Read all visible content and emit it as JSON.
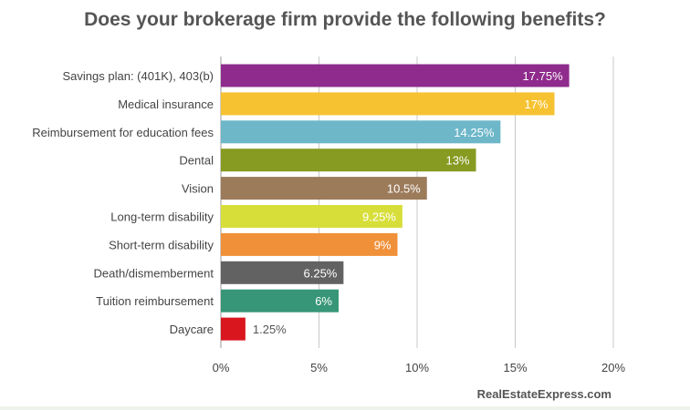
{
  "chart_data": {
    "type": "bar",
    "orientation": "horizontal",
    "title": "Does your brokerage firm provide the following benefits?",
    "categories": [
      "Savings plan: (401K), 403(b)",
      "Medical insurance",
      "Reimbursement for education fees",
      "Dental",
      "Vision",
      "Long-term disability",
      "Short-term disability",
      "Death/dismemberment",
      "Tuition reimbursement",
      "Daycare"
    ],
    "values": [
      17.75,
      17,
      14.25,
      13,
      10.5,
      9.25,
      9,
      6.25,
      6,
      1.25
    ],
    "value_labels": [
      "17.75%",
      "17%",
      "14.25%",
      "13%",
      "10.5%",
      "9.25%",
      "9%",
      "6.25%",
      "6%",
      "1.25%"
    ],
    "colors": [
      "#8f2b8c",
      "#f7c231",
      "#6db7c9",
      "#879a21",
      "#9c7b5b",
      "#d7de3a",
      "#f0913a",
      "#626262",
      "#379677",
      "#d9151e"
    ],
    "xlim": [
      0,
      20
    ],
    "xticks": [
      0,
      5,
      10,
      15,
      20
    ],
    "xtick_labels": [
      "0%",
      "5%",
      "10%",
      "15%",
      "20%"
    ],
    "grid": true,
    "legend": "none"
  },
  "source": "RealEstateExpress.com"
}
